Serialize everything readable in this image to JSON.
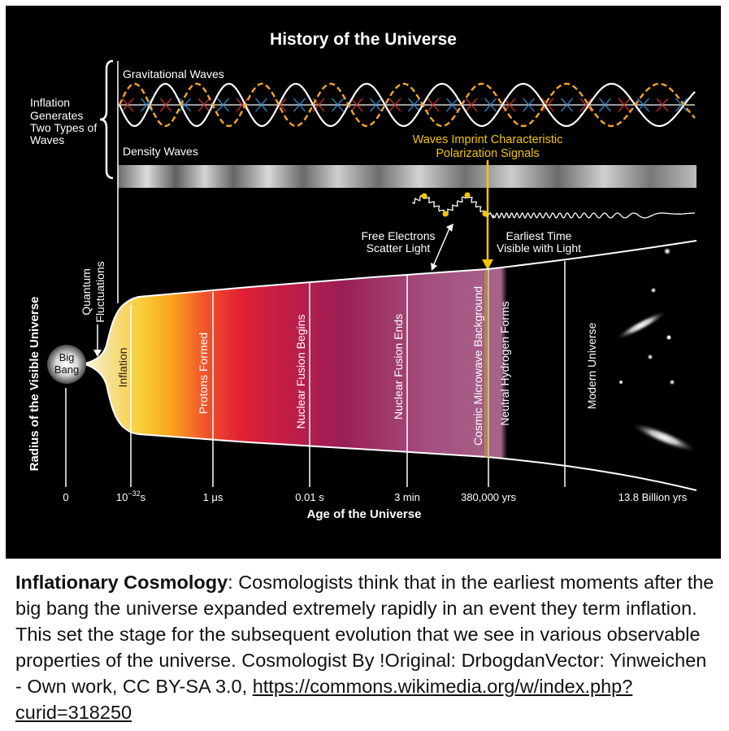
{
  "diagram": {
    "title": "History of the Universe",
    "inflation_note": [
      "Inflation",
      "Generates",
      "Two Types of",
      "Waves"
    ],
    "gravitational_waves_label": "Gravitational Waves",
    "density_waves_label": "Density Waves",
    "imprint_label": [
      "Waves Imprint Characteristic",
      "Polarization Signals"
    ],
    "free_electrons_label": [
      "Free Electrons",
      "Scatter Light"
    ],
    "earliest_time_label": [
      "Earliest Time",
      "Visible with Light"
    ],
    "quantum_fluctuations_label": [
      "Quantum",
      "Fluctuations"
    ],
    "big_bang_label": [
      "Big",
      "Bang"
    ],
    "y_axis_label": "Radius of the Visible Universe",
    "x_axis_label": "Age of the Universe",
    "epochs": [
      "Inflation",
      "Protons Formed",
      "Nuclear Fusion Begins",
      "Nuclear Fusion Ends",
      "Cosmic Microwave Background",
      "Neutral Hydrogen Forms",
      "Modern Universe"
    ],
    "ticks": [
      "0",
      "10",
      "−32",
      "s",
      "1 μs",
      "0.01 s",
      "3 min",
      "380,000 yrs",
      "13.8 Billion yrs"
    ],
    "colors": {
      "gold": "#f5c400",
      "background": "#000000"
    }
  },
  "caption": {
    "title": "Inflationary Cosmology",
    "text": ": Cosmologists think that in the earliest moments after the big bang the universe expanded extremely rapidly in an event they term inflation. This set the stage for the subsequent evolution that we see in various observable properties of the universe. Cosmologist By !Original: DrbogdanVector: Yinweichen - Own work, CC BY-SA 3.0, ",
    "link": "https://commons.wikimedia.org/w/index.php?curid=318250"
  }
}
